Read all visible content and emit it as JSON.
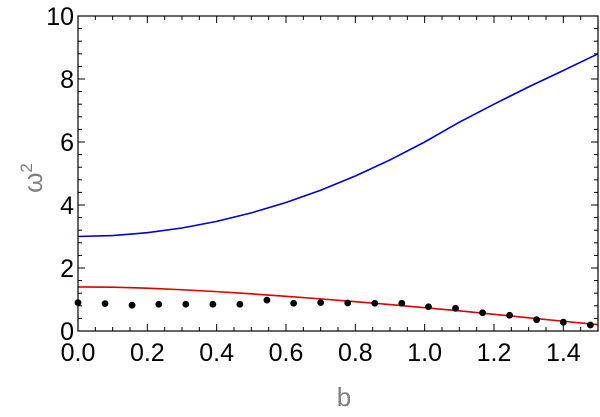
{
  "chart_data": {
    "type": "line",
    "xlabel": "b",
    "ylabel": "ω",
    "ylabel_superscript": "2",
    "xlim": [
      0,
      1.5
    ],
    "ylim": [
      0,
      10
    ],
    "x_ticks": [
      "0.0",
      "0.2",
      "0.4",
      "0.6",
      "0.8",
      "1.0",
      "1.2",
      "1.4"
    ],
    "y_ticks": [
      "0",
      "2",
      "4",
      "6",
      "8",
      "10"
    ],
    "grid": false,
    "legend": "none",
    "series": [
      {
        "style": "line",
        "color": "#0000cc",
        "x": [
          0.0,
          0.1,
          0.2,
          0.3,
          0.4,
          0.5,
          0.6,
          0.7,
          0.8,
          0.9,
          1.0,
          1.1,
          1.2,
          1.3,
          1.4,
          1.5
        ],
        "y": [
          3.0,
          3.03,
          3.12,
          3.27,
          3.48,
          3.75,
          4.08,
          4.47,
          4.92,
          5.43,
          6.0,
          6.63,
          7.2,
          7.75,
          8.27,
          8.8
        ]
      },
      {
        "style": "line",
        "color": "#dd0000",
        "x": [
          0.0,
          0.1,
          0.2,
          0.3,
          0.4,
          0.5,
          0.6,
          0.7,
          0.8,
          0.9,
          1.0,
          1.1,
          1.2,
          1.3,
          1.4,
          1.5
        ],
        "y": [
          1.4,
          1.39,
          1.36,
          1.31,
          1.25,
          1.18,
          1.1,
          1.02,
          0.93,
          0.84,
          0.74,
          0.64,
          0.53,
          0.42,
          0.31,
          0.2
        ]
      },
      {
        "style": "points",
        "color": "#000000",
        "x": [
          0.0,
          0.078,
          0.156,
          0.233,
          0.311,
          0.389,
          0.467,
          0.545,
          0.622,
          0.7,
          0.778,
          0.856,
          0.934,
          1.011,
          1.089,
          1.167,
          1.245,
          1.323,
          1.4,
          1.478
        ],
        "y": [
          0.9,
          0.87,
          0.82,
          0.85,
          0.85,
          0.85,
          0.85,
          0.98,
          0.88,
          0.9,
          0.89,
          0.88,
          0.88,
          0.77,
          0.72,
          0.58,
          0.5,
          0.36,
          0.28,
          0.19
        ]
      }
    ]
  }
}
